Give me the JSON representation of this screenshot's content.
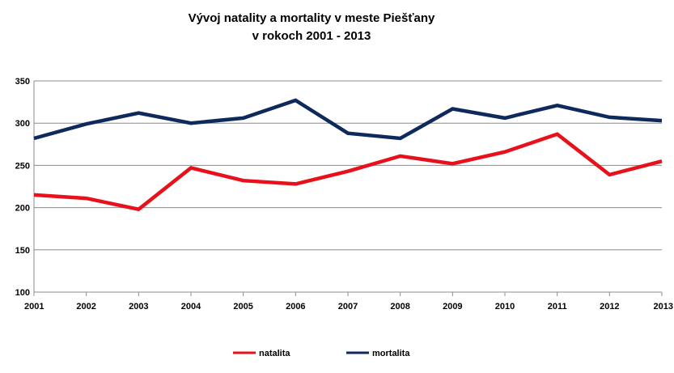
{
  "chart_data": {
    "type": "line",
    "title": [
      "Vývoj natality a mortality v meste Piešťany",
      "v rokoch 2001 - 2013"
    ],
    "xlabel": "",
    "ylabel": "",
    "x": [
      "2001",
      "2002",
      "2003",
      "2004",
      "2005",
      "2006",
      "2007",
      "2008",
      "2009",
      "2010",
      "2011",
      "2012",
      "2013"
    ],
    "yticks": [
      100,
      150,
      200,
      250,
      300,
      350
    ],
    "ylim": [
      100,
      350
    ],
    "grid": true,
    "legend_position": "bottom",
    "series": [
      {
        "name": "natalita",
        "color": "#e8101a",
        "values": [
          215,
          211,
          198,
          247,
          232,
          228,
          243,
          261,
          252,
          266,
          287,
          239,
          255
        ]
      },
      {
        "name": "mortalita",
        "color": "#0e2a5c",
        "values": [
          282,
          299,
          312,
          300,
          306,
          327,
          288,
          282,
          317,
          306,
          321,
          307,
          303
        ]
      }
    ]
  }
}
